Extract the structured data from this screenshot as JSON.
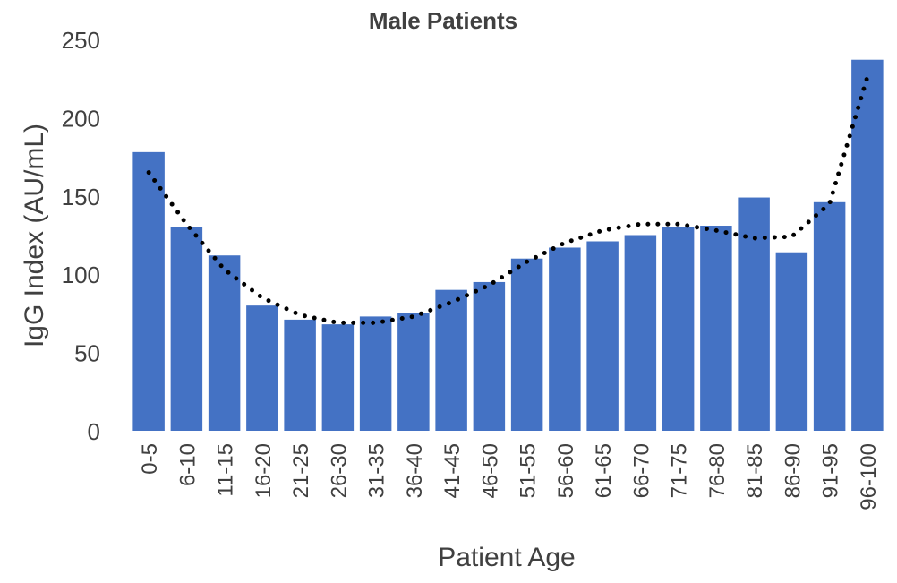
{
  "chart_data": {
    "type": "bar",
    "title": "Male Patients",
    "x_label": "Patient Age",
    "y_label": "IgG Index (AU/mL)",
    "categories": [
      "0-5",
      "6-10",
      "11-15",
      "16-20",
      "21-25",
      "26-30",
      "31-35",
      "36-40",
      "41-45",
      "46-50",
      "51-55",
      "56-60",
      "61-65",
      "66-70",
      "71-75",
      "76-80",
      "81-85",
      "86-90",
      "91-95",
      "96-100"
    ],
    "values": [
      178,
      130,
      112,
      80,
      71,
      68,
      73,
      75,
      90,
      95,
      110,
      117,
      121,
      125,
      130,
      131,
      149,
      114,
      146,
      237
    ],
    "color": "#4472c4",
    "trendline": {
      "values": [
        165,
        132,
        103,
        85,
        74,
        69,
        69,
        73,
        82,
        93,
        108,
        120,
        128,
        132,
        132,
        128,
        123,
        124,
        145,
        226
      ],
      "color": "#000000",
      "style": "dotted"
    },
    "ylim": [
      0,
      250
    ],
    "yticks": [
      0,
      50,
      100,
      150,
      200,
      250
    ],
    "grid": false
  }
}
